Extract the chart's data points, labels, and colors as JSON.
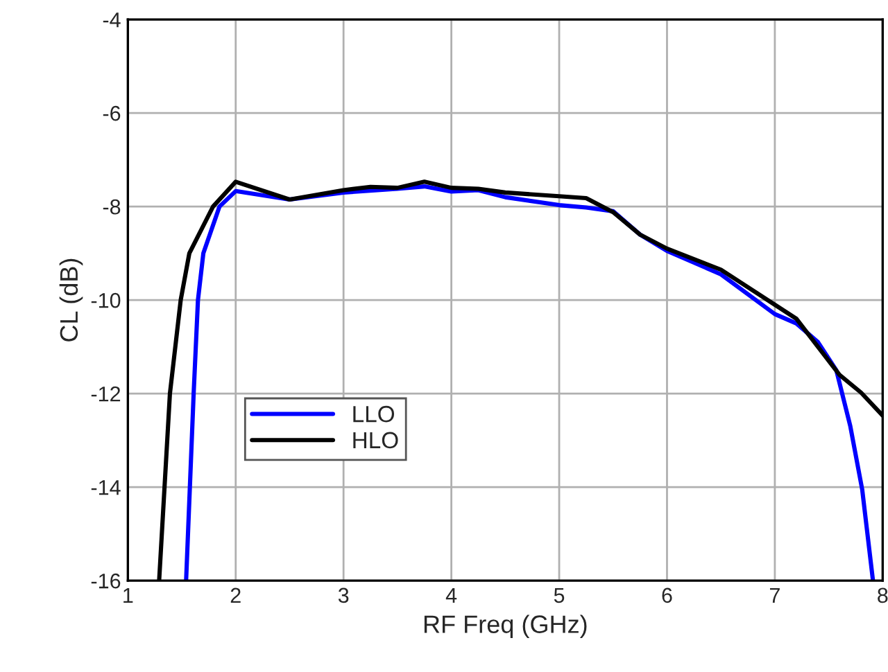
{
  "chart_data": {
    "type": "line",
    "xlabel": "RF Freq (GHz)",
    "ylabel": "CL (dB)",
    "xlim": [
      1,
      8
    ],
    "ylim": [
      -16,
      -4
    ],
    "xticks": [
      1,
      2,
      3,
      4,
      5,
      6,
      7,
      8
    ],
    "yticks": [
      -16,
      -14,
      -12,
      -10,
      -8,
      -6,
      -4
    ],
    "grid": true,
    "legend": "center left",
    "line_style": "solid",
    "marker": "none",
    "series": [
      {
        "name": "LLO",
        "color": "#0000ff",
        "x": [
          1.54,
          1.61,
          1.65,
          1.7,
          1.85,
          2.0,
          2.5,
          3.0,
          3.5,
          3.75,
          4.0,
          4.25,
          4.5,
          5.0,
          5.25,
          5.5,
          5.75,
          6.0,
          6.5,
          7.0,
          7.2,
          7.4,
          7.57,
          7.7,
          7.81,
          7.91
        ],
        "values": [
          -16,
          -12,
          -10,
          -9,
          -8,
          -7.67,
          -7.85,
          -7.7,
          -7.62,
          -7.57,
          -7.68,
          -7.65,
          -7.8,
          -7.97,
          -8.02,
          -8.1,
          -8.6,
          -8.95,
          -9.45,
          -10.3,
          -10.5,
          -10.9,
          -11.5,
          -12.7,
          -14.05,
          -16
        ]
      },
      {
        "name": "HLO",
        "color": "#000000",
        "x": [
          1.29,
          1.39,
          1.49,
          1.57,
          1.79,
          2.0,
          2.5,
          3.0,
          3.25,
          3.5,
          3.75,
          4.0,
          4.25,
          4.5,
          5.0,
          5.25,
          5.5,
          5.75,
          6.0,
          6.5,
          7.0,
          7.2,
          7.4,
          7.6,
          7.8,
          8.0
        ],
        "values": [
          -16,
          -12,
          -10,
          -9,
          -8,
          -7.47,
          -7.85,
          -7.65,
          -7.58,
          -7.6,
          -7.47,
          -7.6,
          -7.62,
          -7.7,
          -7.78,
          -7.82,
          -8.12,
          -8.6,
          -8.9,
          -9.35,
          -10.1,
          -10.4,
          -11.0,
          -11.6,
          -11.98,
          -12.47
        ]
      }
    ]
  }
}
